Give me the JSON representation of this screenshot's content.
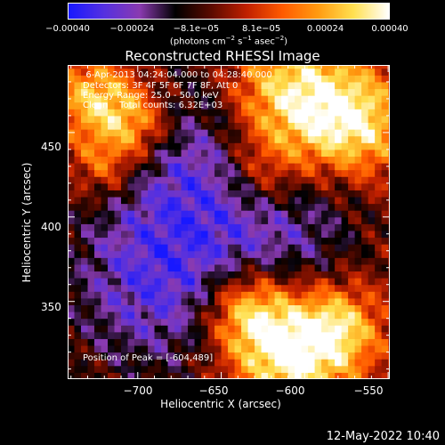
{
  "chart_data": {
    "type": "heatmap",
    "title": "Reconstructed RHESSI Image",
    "xlabel": "Heliocentric X (arcsec)",
    "ylabel": "Heliocentric Y (arcsec)",
    "xlim": [
      -742,
      -549
    ],
    "ylim": [
      304,
      490
    ],
    "xticks": [
      -700,
      -650,
      -600,
      -550
    ],
    "xtick_labels": [
      "−700",
      "−650",
      "−600",
      "−550"
    ],
    "yticks": [
      350,
      400,
      450
    ],
    "ytick_labels": [
      "350",
      "400",
      "450"
    ],
    "colorbar": {
      "min": -0.0004,
      "max": 0.0004,
      "tick_labels": [
        "−0.00040",
        "−0.00024",
        "−8.1e−05",
        "8.1e−05",
        "0.00024",
        "0.00040"
      ],
      "tick_values": [
        -0.0004,
        -0.00024,
        -8.1e-05,
        8.1e-05,
        0.00024,
        0.0004
      ],
      "units_prefix": "(photons cm",
      "units_exp1": "−2",
      "units_mid1": " s",
      "units_exp2": "−1",
      "units_mid2": " asec",
      "units_exp3": "−2",
      "units_suffix": ")",
      "stops": [
        "#1818ff",
        "#5530e0",
        "#8a3ab0",
        "#000000",
        "#5a0a00",
        "#c02000",
        "#ff5a00",
        "#ff9a10",
        "#ffe050",
        "#ffffff"
      ]
    },
    "annotations": {
      "time_range": "  6-Apr-2013 04:24:04.000 to 04:28:40.000",
      "detectors": "Detectors: 3F 4F 5F 6F 7F 8F, Att 0",
      "energy_range": "Energy Range: 25.0 - 50.0 keV",
      "clean_counts": "Clean    Total counts: 6.32E+03",
      "peak_position": "Position of Peak = [-604,489]"
    },
    "peak": [
      -604,
      489
    ]
  },
  "footer": {
    "timestamp": "12-May-2022 10:40"
  }
}
